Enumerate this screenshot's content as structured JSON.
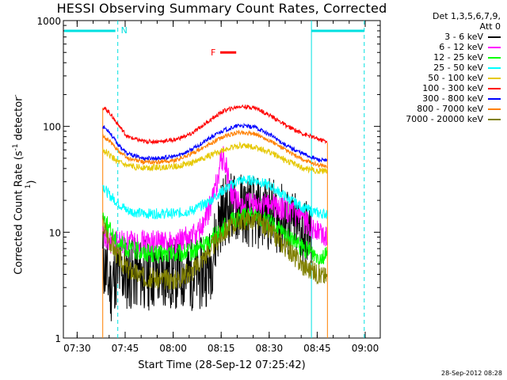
{
  "title": "HESSI Observing Summary Count Rates, Corrected",
  "legend": {
    "header_lines": [
      "Det 1,3,5,6,7,9,",
      "Att 0"
    ]
  },
  "timestamp": "28-Sep-2012 08:28",
  "colors": {
    "background": "#ffffff",
    "axes": "#000000",
    "night": "#00e0e0",
    "flare": "#ff0000"
  },
  "chart_data": {
    "type": "line",
    "title": "HESSI Observing Summary Count Rates, Corrected",
    "xlabel": "Start Time (28-Sep-12 07:25:42)",
    "ylabel_main": "Corrected Count Rate (s",
    "ylabel_sup1": "-1",
    "ylabel_mid": " detector",
    "ylabel_sup2": "-1",
    "ylabel_end": ")",
    "x_unit": "minutes after 07:25:42",
    "xlim": [
      0,
      99
    ],
    "ylim": [
      1,
      1000
    ],
    "y_scale": "log",
    "x_ticks": [
      "07:30",
      "07:45",
      "08:00",
      "08:15",
      "08:30",
      "08:45",
      "09:00"
    ],
    "y_ticks": [
      "1",
      "10",
      "100",
      "1000"
    ],
    "legend_position": "right",
    "annotations": {
      "night_label": "N",
      "flare_label": "F",
      "night_bar_1": [
        0,
        17
      ],
      "night_bar_2": [
        77.5,
        94
      ],
      "flare_bar": [
        48.5,
        54
      ]
    },
    "series": [
      {
        "name": "3 - 6 keV",
        "color": "#000000",
        "x": [
          12.3,
          13,
          14,
          15,
          16,
          17,
          20,
          25,
          30,
          35,
          40,
          43,
          45,
          46,
          47,
          48,
          49,
          50,
          51,
          52,
          53,
          55,
          60,
          65,
          70,
          75,
          77.5
        ],
        "y": [
          5.5,
          4.5,
          3.5,
          3,
          4,
          4,
          4,
          4,
          4,
          4,
          4,
          4,
          4.5,
          5,
          7,
          10,
          14,
          16,
          17,
          17,
          17,
          17,
          15,
          15,
          12,
          10,
          9
        ]
      },
      {
        "name": "6 - 12 keV",
        "color": "#ff00ff",
        "x": [
          12.3,
          14,
          17,
          20,
          25,
          30,
          35,
          40,
          42,
          44,
          46,
          48,
          49,
          50,
          51,
          52,
          54,
          56,
          60,
          65,
          70,
          75,
          80,
          82.5
        ],
        "y": [
          9,
          8,
          8,
          8,
          8,
          8,
          8,
          9,
          10,
          12,
          18,
          30,
          45,
          50,
          40,
          26,
          19,
          18,
          18,
          18,
          16,
          13,
          10,
          9
        ]
      },
      {
        "name": "12 - 25 keV",
        "color": "#00ff00",
        "x": [
          12.3,
          14,
          17,
          20,
          25,
          30,
          35,
          40,
          45,
          50,
          55,
          60,
          65,
          70,
          75,
          80,
          82.5
        ],
        "y": [
          15,
          11,
          8,
          7,
          6.5,
          6.2,
          6.2,
          6.5,
          8,
          11,
          14,
          14,
          12,
          9,
          7,
          6,
          6
        ]
      },
      {
        "name": "25 - 50 keV",
        "color": "#00ffff",
        "x": [
          12.3,
          14,
          17,
          20,
          25,
          30,
          35,
          40,
          45,
          50,
          55,
          60,
          65,
          70,
          75,
          80,
          82.5
        ],
        "y": [
          28,
          23,
          19,
          16,
          15,
          15,
          15,
          16,
          19,
          25,
          31,
          31,
          27,
          21,
          17,
          15,
          15
        ]
      },
      {
        "name": "50 - 100 keV",
        "color": "#e6c800",
        "x": [
          12.3,
          14,
          17,
          20,
          25,
          30,
          35,
          40,
          45,
          50,
          55,
          60,
          65,
          70,
          75,
          80,
          82.5
        ],
        "y": [
          60,
          55,
          46,
          42,
          41,
          41,
          42,
          45,
          52,
          60,
          66,
          64,
          56,
          47,
          40,
          38,
          38
        ]
      },
      {
        "name": "100 - 300 keV",
        "color": "#ff0000",
        "x": [
          12.3,
          14,
          17,
          20,
          25,
          30,
          35,
          40,
          45,
          50,
          55,
          60,
          65,
          70,
          75,
          80,
          82.5
        ],
        "y": [
          150,
          140,
          105,
          80,
          72,
          72,
          75,
          85,
          110,
          140,
          155,
          150,
          125,
          100,
          85,
          75,
          72
        ]
      },
      {
        "name": "300 - 800 keV",
        "color": "#0000ff",
        "x": [
          12.3,
          14,
          17,
          20,
          25,
          30,
          35,
          40,
          45,
          50,
          55,
          60,
          65,
          70,
          75,
          80,
          82.5
        ],
        "y": [
          100,
          92,
          68,
          55,
          50,
          50,
          52,
          60,
          75,
          92,
          102,
          98,
          82,
          65,
          55,
          48,
          47
        ]
      },
      {
        "name": "800 - 7000 keV",
        "color": "#ff8000",
        "x": [
          12.3,
          14,
          17,
          20,
          25,
          30,
          35,
          40,
          45,
          50,
          55,
          60,
          65,
          70,
          75,
          80,
          82.5
        ],
        "y": [
          80,
          75,
          60,
          50,
          46,
          46,
          48,
          55,
          66,
          80,
          88,
          85,
          72,
          58,
          48,
          43,
          42
        ]
      },
      {
        "name": "7000 - 20000 keV",
        "color": "#808000",
        "x": [
          12.3,
          14,
          17,
          20,
          25,
          30,
          35,
          40,
          45,
          50,
          55,
          60,
          65,
          70,
          75,
          80,
          82.5
        ],
        "y": [
          12,
          9,
          6,
          4.5,
          3.8,
          3.6,
          3.6,
          4.2,
          6.5,
          10,
          13,
          13,
          10,
          7,
          4.8,
          4,
          3.8
        ]
      }
    ]
  }
}
